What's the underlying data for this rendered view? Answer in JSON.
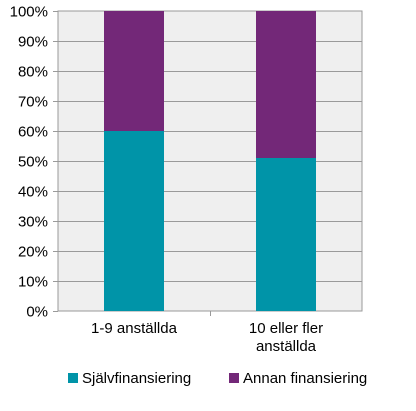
{
  "chart_data": {
    "type": "bar",
    "stacked": true,
    "categories": [
      [
        "1-9 anställda"
      ],
      [
        "10 eller fler",
        "anställda"
      ]
    ],
    "series": [
      {
        "name": "Självfinansiering",
        "color": "#0094a8",
        "values": [
          60,
          51
        ]
      },
      {
        "name": "Annan finansiering",
        "color": "#732878",
        "values": [
          40,
          49
        ]
      }
    ],
    "y_ticks": [
      "0%",
      "10%",
      "20%",
      "30%",
      "40%",
      "50%",
      "60%",
      "70%",
      "80%",
      "90%",
      "100%"
    ],
    "ylim": [
      0,
      100
    ],
    "grid": true,
    "legend": "bottom",
    "plot_background": "#efefef"
  }
}
